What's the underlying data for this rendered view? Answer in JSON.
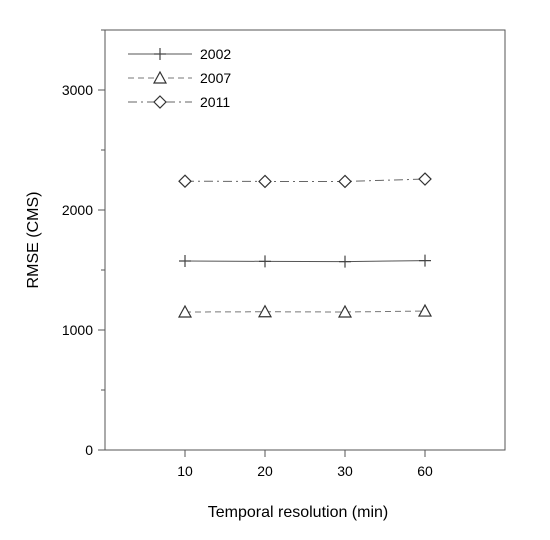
{
  "chart_data": {
    "type": "line",
    "title": "",
    "xlabel": "Temporal resolution (min)",
    "ylabel": "RMSE (CMS)",
    "categories": [
      "10",
      "20",
      "30",
      "60"
    ],
    "ylim": [
      0,
      3500
    ],
    "yticks": [
      0,
      1000,
      2000,
      3000
    ],
    "grid": false,
    "legend": "top-left",
    "series": [
      {
        "name": "2002",
        "marker": "plus",
        "line_style": "solid",
        "color": "#555555",
        "values": [
          1575,
          1572,
          1570,
          1578
        ]
      },
      {
        "name": "2007",
        "marker": "triangle",
        "line_style": "dashed",
        "color": "#777777",
        "values": [
          1150,
          1152,
          1150,
          1158
        ]
      },
      {
        "name": "2011",
        "marker": "diamond",
        "line_style": "dash-dot",
        "color": "#666666",
        "values": [
          2240,
          2238,
          2238,
          2258
        ]
      }
    ]
  }
}
